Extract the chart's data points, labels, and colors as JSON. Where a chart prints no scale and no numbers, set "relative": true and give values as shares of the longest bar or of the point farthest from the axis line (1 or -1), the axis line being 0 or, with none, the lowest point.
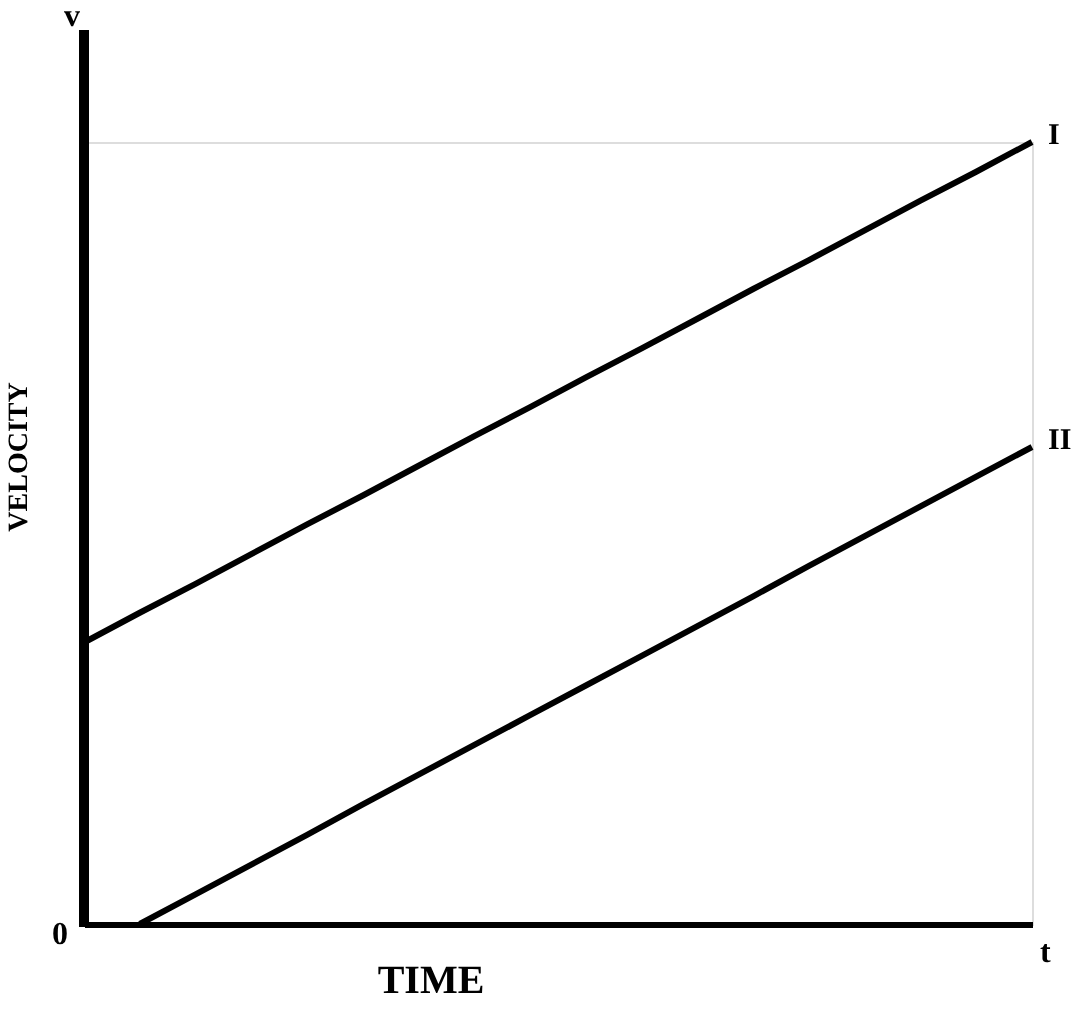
{
  "chart_data": {
    "type": "line",
    "relative": true,
    "xlabel": "TIME",
    "ylabel": "VELOCITY",
    "grid": false,
    "legend": false,
    "marker": "none",
    "line_style": "solid",
    "annotations": [
      "v",
      "t",
      "0"
    ],
    "categories": [
      null,
      null,
      null,
      null,
      null,
      null,
      null,
      null,
      null,
      null,
      null,
      null,
      null,
      null,
      null,
      null,
      null,
      null
    ],
    "series": [
      {
        "name": "I",
        "color": "#000000",
        "values": [
          0.36,
          0.398,
          0.435,
          0.473,
          0.511,
          0.548,
          0.586,
          0.624,
          0.661,
          0.699,
          0.736,
          0.774,
          0.812,
          0.849,
          0.887,
          0.925,
          0.962,
          1.0
        ]
      },
      {
        "name": "II",
        "color": "#000000",
        "values": [
          null,
          0,
          0.038,
          0.076,
          0.114,
          0.153,
          0.191,
          0.229,
          0.267,
          0.305,
          0.343,
          0.381,
          0.419,
          0.458,
          0.496,
          0.534,
          0.572,
          0.61
        ]
      }
    ]
  }
}
